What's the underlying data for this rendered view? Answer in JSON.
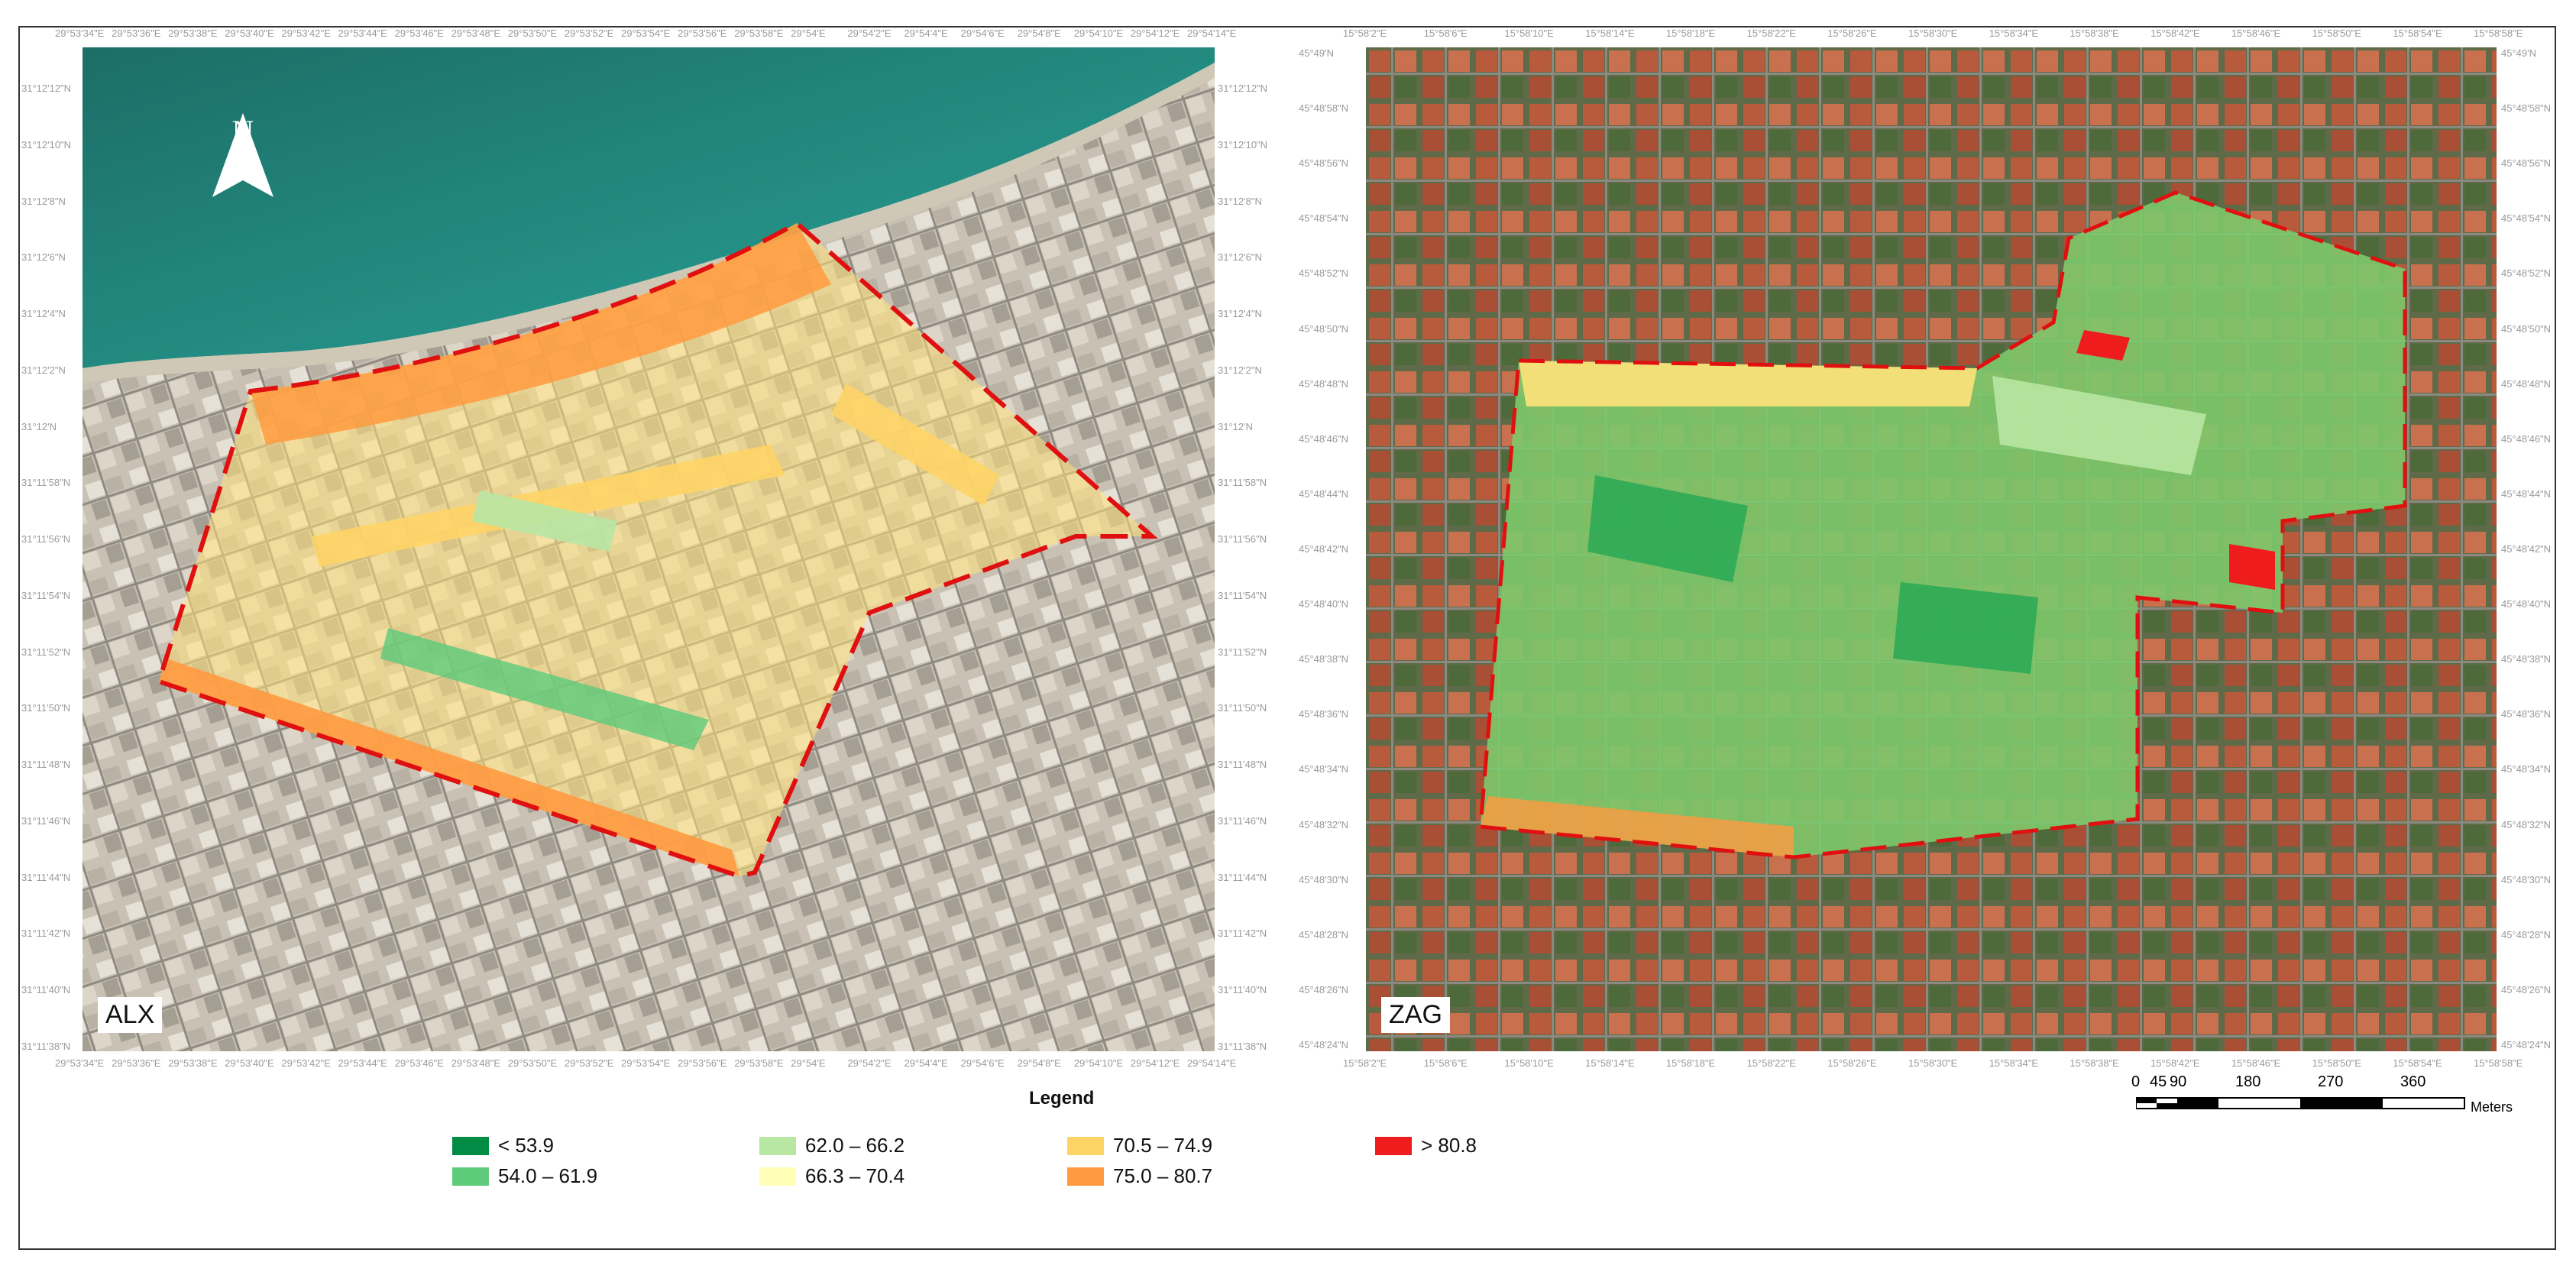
{
  "legend": {
    "title": "Legend",
    "items": [
      {
        "label": "< 53.9",
        "color": "#008c45"
      },
      {
        "label": "54.0 – 61.9",
        "color": "#5dcb7a"
      },
      {
        "label": "62.0 – 66.2",
        "color": "#b8e6a3"
      },
      {
        "label": "66.3 – 70.4",
        "color": "#ffffb8"
      },
      {
        "label": "70.5 – 74.9",
        "color": "#ffd466"
      },
      {
        "label": "75.0 – 80.7",
        "color": "#ff9a40"
      },
      {
        "label": "> 80.8",
        "color": "#ee1c1c"
      }
    ]
  },
  "maps": {
    "alx": {
      "label": "ALX",
      "lon_ticks": [
        "29°53'34\"E",
        "29°53'36\"E",
        "29°53'38\"E",
        "29°53'40\"E",
        "29°53'42\"E",
        "29°53'44\"E",
        "29°53'46\"E",
        "29°53'48\"E",
        "29°53'50\"E",
        "29°53'52\"E",
        "29°53'54\"E",
        "29°53'56\"E",
        "29°53'58\"E",
        "29°54'E",
        "29°54'2\"E",
        "29°54'4\"E",
        "29°54'6\"E",
        "29°54'8\"E",
        "29°54'10\"E",
        "29°54'12\"E",
        "29°54'14\"E"
      ],
      "lat_ticks": [
        "31°12'12\"N",
        "31°12'10\"N",
        "31°12'8\"N",
        "31°12'6\"N",
        "31°12'4\"N",
        "31°12'2\"N",
        "31°12'N",
        "31°11'58\"N",
        "31°11'56\"N",
        "31°11'54\"N",
        "31°11'52\"N",
        "31°11'50\"N",
        "31°11'48\"N",
        "31°11'46\"N",
        "31°11'44\"N",
        "31°11'42\"N",
        "31°11'40\"N",
        "31°11'38\"N"
      ]
    },
    "zag": {
      "label": "ZAG",
      "lon_ticks": [
        "15°58'2\"E",
        "15°58'6\"E",
        "15°58'10\"E",
        "15°58'14\"E",
        "15°58'18\"E",
        "15°58'22\"E",
        "15°58'26\"E",
        "15°58'30\"E",
        "15°58'34\"E",
        "15°58'38\"E",
        "15°58'42\"E",
        "15°58'46\"E",
        "15°58'50\"E",
        "15°58'54\"E",
        "15°58'58\"E"
      ],
      "lat_ticks": [
        "45°49'N",
        "45°48'58\"N",
        "45°48'56\"N",
        "45°48'54\"N",
        "45°48'52\"N",
        "45°48'50\"N",
        "45°48'48\"N",
        "45°48'46\"N",
        "45°48'44\"N",
        "45°48'42\"N",
        "45°48'40\"N",
        "45°48'38\"N",
        "45°48'36\"N",
        "45°48'34\"N",
        "45°48'32\"N",
        "45°48'30\"N",
        "45°48'28\"N",
        "45°48'26\"N",
        "45°48'24\"N"
      ]
    }
  },
  "north_arrow": {
    "label": "N"
  },
  "scale_bar": {
    "ticks": [
      "0",
      "45",
      "90",
      "180",
      "270",
      "360"
    ],
    "unit": "Meters"
  }
}
